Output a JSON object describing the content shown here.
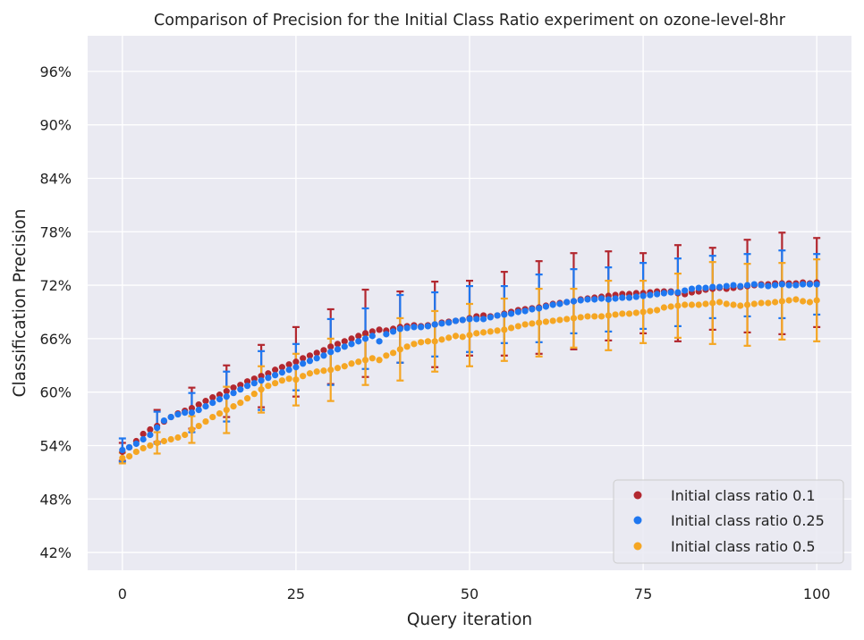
{
  "chart_data": {
    "type": "scatter",
    "title": "Comparison of Precision for the Initial Class Ratio experiment on ozone-level-8hr",
    "xlabel": "Query iteration",
    "ylabel": "Classification Precision",
    "xlim": [
      -5,
      105
    ],
    "ylim": [
      40,
      100
    ],
    "xticks": [
      0,
      25,
      50,
      75,
      100
    ],
    "yticks": [
      42,
      48,
      54,
      60,
      66,
      72,
      78,
      84,
      90,
      96
    ],
    "ytick_format": "percent",
    "grid": true,
    "legend_position": "lower-right",
    "background": "#eaeaf2",
    "error_bar_every": 5,
    "series": [
      {
        "name": "Initial class ratio 0.1",
        "color": "#b22830",
        "x": [
          0,
          1,
          2,
          3,
          4,
          5,
          6,
          7,
          8,
          9,
          10,
          11,
          12,
          13,
          14,
          15,
          16,
          17,
          18,
          19,
          20,
          21,
          22,
          23,
          24,
          25,
          26,
          27,
          28,
          29,
          30,
          31,
          32,
          33,
          34,
          35,
          36,
          37,
          38,
          39,
          40,
          41,
          42,
          43,
          44,
          45,
          46,
          47,
          48,
          49,
          50,
          51,
          52,
          53,
          54,
          55,
          56,
          57,
          58,
          59,
          60,
          61,
          62,
          63,
          64,
          65,
          66,
          67,
          68,
          69,
          70,
          71,
          72,
          73,
          74,
          75,
          76,
          77,
          78,
          79,
          80,
          81,
          82,
          83,
          84,
          85,
          86,
          87,
          88,
          89,
          90,
          91,
          92,
          93,
          94,
          95,
          96,
          97,
          98,
          99,
          100
        ],
        "y": [
          53.3,
          53.8,
          54.5,
          55.3,
          55.8,
          56.2,
          56.7,
          57.2,
          57.6,
          57.9,
          58.2,
          58.6,
          59.0,
          59.4,
          59.7,
          60.1,
          60.5,
          60.8,
          61.2,
          61.5,
          61.8,
          62.1,
          62.5,
          62.8,
          63.1,
          63.4,
          63.8,
          64.1,
          64.4,
          64.7,
          65.1,
          65.4,
          65.7,
          66.0,
          66.3,
          66.6,
          66.8,
          67.0,
          66.9,
          67.1,
          67.3,
          67.4,
          67.5,
          67.4,
          67.5,
          67.6,
          67.8,
          67.9,
          68.0,
          68.1,
          68.3,
          68.5,
          68.6,
          68.5,
          68.6,
          68.8,
          69.0,
          69.2,
          69.3,
          69.4,
          69.5,
          69.7,
          69.9,
          70.0,
          70.1,
          70.2,
          70.4,
          70.5,
          70.6,
          70.7,
          70.8,
          70.9,
          71.0,
          71.0,
          71.1,
          71.1,
          71.2,
          71.3,
          71.3,
          71.3,
          71.1,
          71.0,
          71.2,
          71.3,
          71.5,
          71.6,
          71.7,
          71.6,
          71.7,
          71.8,
          71.9,
          72.0,
          72.1,
          72.1,
          72.2,
          72.2,
          72.2,
          72.2,
          72.3,
          72.2,
          72.3
        ],
        "err": [
          1.0,
          0,
          0,
          0,
          0,
          1.8,
          0,
          0,
          0,
          0,
          2.3,
          0,
          0,
          0,
          0,
          2.9,
          0,
          0,
          0,
          0,
          3.5,
          0,
          0,
          0,
          0,
          3.9,
          0,
          0,
          0,
          0,
          4.2,
          0,
          0,
          0,
          0,
          4.9,
          0,
          0,
          0,
          0,
          4.0,
          0,
          0,
          0,
          0,
          4.8,
          0,
          0,
          0,
          0,
          4.2,
          0,
          0,
          0,
          0,
          4.7,
          0,
          0,
          0,
          0,
          5.2,
          0,
          0,
          0,
          0,
          5.4,
          0,
          0,
          0,
          0,
          5.0,
          0,
          0,
          0,
          0,
          4.5,
          0,
          0,
          0,
          0,
          5.4,
          0,
          0,
          0,
          0,
          4.6,
          0,
          0,
          0,
          0,
          5.2,
          0,
          0,
          0,
          0,
          5.7,
          0,
          0,
          0,
          0,
          5.0
        ]
      },
      {
        "name": "Initial class ratio 0.25",
        "color": "#1f77f0",
        "x": [
          0,
          1,
          2,
          3,
          4,
          5,
          6,
          7,
          8,
          9,
          10,
          11,
          12,
          13,
          14,
          15,
          16,
          17,
          18,
          19,
          20,
          21,
          22,
          23,
          24,
          25,
          26,
          27,
          28,
          29,
          30,
          31,
          32,
          33,
          34,
          35,
          36,
          37,
          38,
          39,
          40,
          41,
          42,
          43,
          44,
          45,
          46,
          47,
          48,
          49,
          50,
          51,
          52,
          53,
          54,
          55,
          56,
          57,
          58,
          59,
          60,
          61,
          62,
          63,
          64,
          65,
          66,
          67,
          68,
          69,
          70,
          71,
          72,
          73,
          74,
          75,
          76,
          77,
          78,
          79,
          80,
          81,
          82,
          83,
          84,
          85,
          86,
          87,
          88,
          89,
          90,
          91,
          92,
          93,
          94,
          95,
          96,
          97,
          98,
          99,
          100
        ],
        "y": [
          53.5,
          53.8,
          54.2,
          54.7,
          55.2,
          56.0,
          56.8,
          57.2,
          57.5,
          57.7,
          57.7,
          58.0,
          58.4,
          58.8,
          59.2,
          59.5,
          59.9,
          60.3,
          60.7,
          61.0,
          61.3,
          61.6,
          61.9,
          62.2,
          62.5,
          62.8,
          63.2,
          63.5,
          63.8,
          64.1,
          64.5,
          64.8,
          65.1,
          65.4,
          65.7,
          66.0,
          66.3,
          65.7,
          66.5,
          66.8,
          67.1,
          67.2,
          67.3,
          67.3,
          67.4,
          67.6,
          67.7,
          67.8,
          68.0,
          68.1,
          68.2,
          68.2,
          68.2,
          68.4,
          68.6,
          68.7,
          68.8,
          69.0,
          69.1,
          69.3,
          69.4,
          69.6,
          69.8,
          69.9,
          70.1,
          70.2,
          70.3,
          70.4,
          70.4,
          70.5,
          70.4,
          70.5,
          70.6,
          70.6,
          70.7,
          70.8,
          70.9,
          71.0,
          71.1,
          71.2,
          71.2,
          71.4,
          71.6,
          71.7,
          71.7,
          71.8,
          71.8,
          71.9,
          72.0,
          71.9,
          72.0,
          72.1,
          72.0,
          71.9,
          72.0,
          72.1,
          72.0,
          72.0,
          72.1,
          72.1,
          72.1
        ],
        "err": [
          1.3,
          0,
          0,
          0,
          0,
          1.8,
          0,
          0,
          0,
          0,
          2.2,
          0,
          0,
          0,
          0,
          2.8,
          0,
          0,
          0,
          0,
          3.3,
          0,
          0,
          0,
          0,
          2.6,
          0,
          0,
          0,
          0,
          3.7,
          0,
          0,
          0,
          0,
          3.4,
          0,
          0,
          0,
          0,
          3.8,
          0,
          0,
          0,
          0,
          3.6,
          0,
          0,
          0,
          0,
          3.7,
          0,
          0,
          0,
          0,
          3.2,
          0,
          0,
          0,
          0,
          3.8,
          0,
          0,
          0,
          0,
          3.6,
          0,
          0,
          0,
          0,
          3.6,
          0,
          0,
          0,
          0,
          3.7,
          0,
          0,
          0,
          0,
          3.8,
          0,
          0,
          0,
          0,
          3.5,
          0,
          0,
          0,
          0,
          3.5,
          0,
          0,
          0,
          0,
          3.8,
          0,
          0,
          0,
          0,
          3.4
        ]
      },
      {
        "name": "Initial class ratio 0.5",
        "color": "#f5a623",
        "x": [
          0,
          1,
          2,
          3,
          4,
          5,
          6,
          7,
          8,
          9,
          10,
          11,
          12,
          13,
          14,
          15,
          16,
          17,
          18,
          19,
          20,
          21,
          22,
          23,
          24,
          25,
          26,
          27,
          28,
          29,
          30,
          31,
          32,
          33,
          34,
          35,
          36,
          37,
          38,
          39,
          40,
          41,
          42,
          43,
          44,
          45,
          46,
          47,
          48,
          49,
          50,
          51,
          52,
          53,
          54,
          55,
          56,
          57,
          58,
          59,
          60,
          61,
          62,
          63,
          64,
          65,
          66,
          67,
          68,
          69,
          70,
          71,
          72,
          73,
          74,
          75,
          76,
          77,
          78,
          79,
          80,
          81,
          82,
          83,
          84,
          85,
          86,
          87,
          88,
          89,
          90,
          91,
          92,
          93,
          94,
          95,
          96,
          97,
          98,
          99,
          100
        ],
        "y": [
          52.6,
          52.8,
          53.3,
          53.7,
          54.0,
          54.3,
          54.5,
          54.7,
          54.9,
          55.2,
          55.8,
          56.2,
          56.7,
          57.2,
          57.6,
          58.0,
          58.4,
          58.8,
          59.3,
          59.8,
          60.3,
          60.7,
          61.0,
          61.3,
          61.5,
          61.4,
          61.8,
          62.1,
          62.3,
          62.4,
          62.5,
          62.7,
          62.9,
          63.2,
          63.4,
          63.6,
          63.8,
          63.6,
          64.1,
          64.4,
          64.8,
          65.1,
          65.4,
          65.6,
          65.7,
          65.7,
          65.9,
          66.1,
          66.3,
          66.2,
          66.4,
          66.6,
          66.7,
          66.8,
          66.9,
          67.0,
          67.2,
          67.4,
          67.6,
          67.7,
          67.8,
          67.9,
          68.0,
          68.1,
          68.2,
          68.3,
          68.4,
          68.5,
          68.5,
          68.5,
          68.6,
          68.7,
          68.8,
          68.8,
          68.9,
          69.0,
          69.1,
          69.2,
          69.5,
          69.6,
          69.7,
          69.8,
          69.8,
          69.8,
          69.9,
          70.0,
          70.1,
          69.9,
          69.8,
          69.7,
          69.8,
          69.9,
          70.0,
          70.0,
          70.1,
          70.2,
          70.3,
          70.4,
          70.2,
          70.1,
          70.3
        ],
        "err": [
          0.6,
          0,
          0,
          0,
          0,
          1.2,
          0,
          0,
          0,
          0,
          1.5,
          0,
          0,
          0,
          0,
          2.6,
          0,
          0,
          0,
          0,
          2.6,
          0,
          0,
          0,
          0,
          2.9,
          0,
          0,
          0,
          0,
          3.5,
          0,
          0,
          0,
          0,
          2.8,
          0,
          0,
          0,
          0,
          3.5,
          0,
          0,
          0,
          0,
          3.4,
          0,
          0,
          0,
          0,
          3.5,
          0,
          0,
          0,
          0,
          3.5,
          0,
          0,
          0,
          0,
          3.8,
          0,
          0,
          0,
          0,
          3.3,
          0,
          0,
          0,
          0,
          3.9,
          0,
          0,
          0,
          0,
          3.5,
          0,
          0,
          0,
          0,
          3.6,
          0,
          0,
          0,
          0,
          4.6,
          0,
          0,
          0,
          0,
          4.6,
          0,
          0,
          0,
          0,
          4.3,
          0,
          0,
          0,
          0,
          4.6
        ]
      }
    ]
  }
}
